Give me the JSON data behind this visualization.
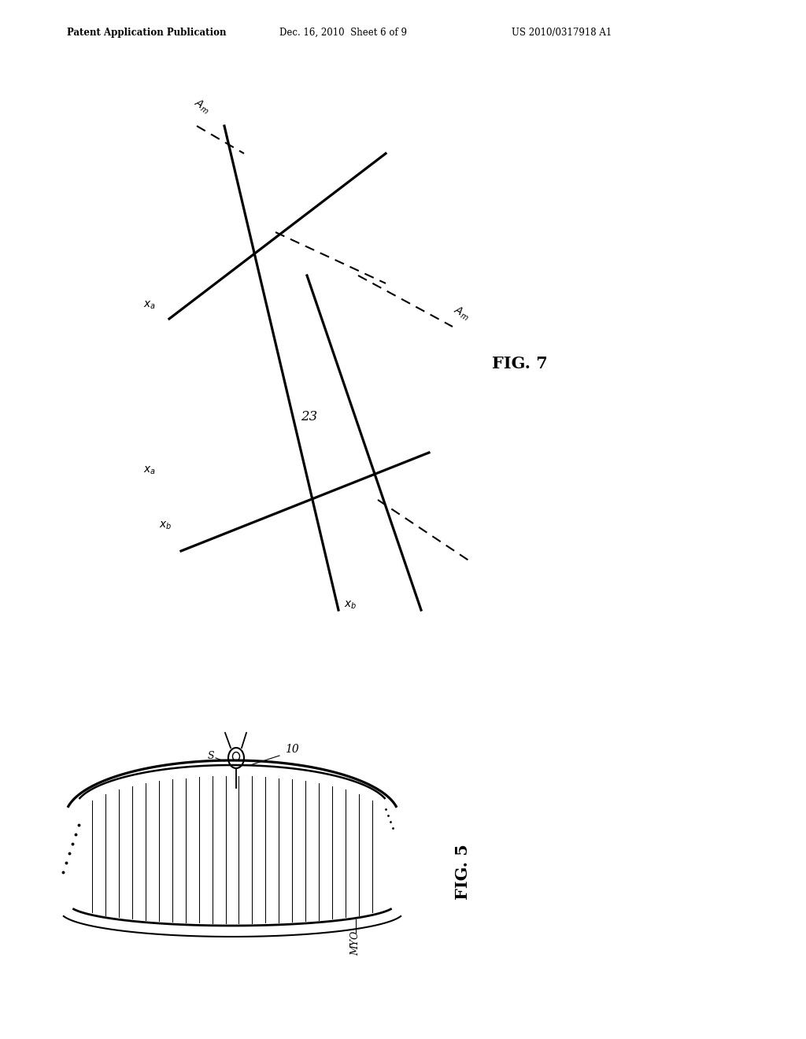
{
  "bg_color": "#ffffff",
  "header_left": "Patent Application Publication",
  "header_mid": "Dec. 16, 2010  Sheet 6 of 9",
  "header_right": "US 2010/0317918 A1",
  "fig7_label": "FIG. 7",
  "fig5_label": "FIG. 5",
  "label_23": "23",
  "label_s": "S",
  "label_10": "10",
  "label_myo": "MYO",
  "label_xa": "$x_a$",
  "label_xb": "$x_b$",
  "label_Am": "$A_m$"
}
